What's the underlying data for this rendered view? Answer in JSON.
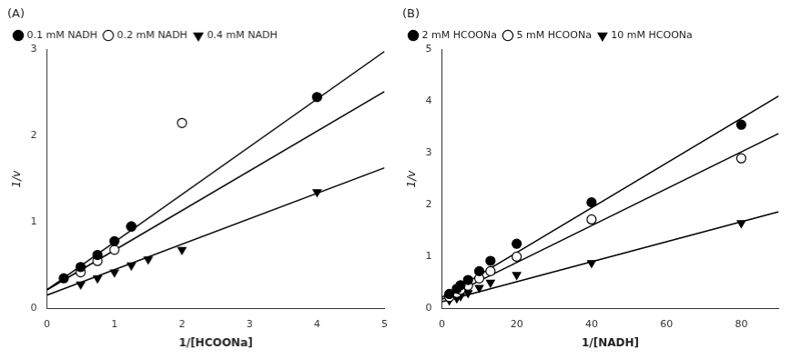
{
  "chart_data": [
    {
      "type": "scatter",
      "title": "(A)",
      "xlabel": "1/[HCOONa]",
      "ylabel": "1/v",
      "xlim": [
        0,
        5
      ],
      "ylim": [
        0,
        3
      ],
      "xticks": [
        0,
        1,
        2,
        3,
        4,
        5
      ],
      "yticks": [
        0,
        1,
        2,
        3
      ],
      "grid": false,
      "legend": "upper left",
      "series": [
        {
          "name": "0.1 mM NADH",
          "color": "#000000",
          "marker": "circle",
          "x": [
            0.25,
            0.5,
            0.75,
            1.0,
            1.25,
            4.0
          ],
          "values": [
            0.35,
            0.48,
            0.62,
            0.78,
            0.95,
            2.45
          ],
          "line": {
            "x": [
              0,
              5
            ],
            "y": [
              0.215,
              2.98
            ]
          }
        },
        {
          "name": "0.2 mM NADH",
          "color": "#000000",
          "marker": "circle-open",
          "x": [
            0.5,
            0.75,
            1.0,
            1.25,
            2.0
          ],
          "values": [
            0.42,
            0.55,
            0.68,
            0.95,
            2.15
          ],
          "line": {
            "x": [
              0,
              5
            ],
            "y": [
              0.215,
              2.515
            ]
          }
        },
        {
          "name": "0.4 mM NADH",
          "color": "#000000",
          "marker": "triangle-down",
          "x": [
            0.5,
            0.75,
            1.0,
            1.25,
            1.5,
            2.0,
            4.0
          ],
          "values": [
            0.28,
            0.35,
            0.42,
            0.5,
            0.57,
            0.68,
            1.35
          ],
          "line": {
            "x": [
              0,
              5
            ],
            "y": [
              0.155,
              1.63
            ]
          }
        }
      ]
    },
    {
      "type": "scatter",
      "title": "(B)",
      "xlabel": "1/[NADH]",
      "ylabel": "1/v",
      "xlim": [
        0,
        90
      ],
      "ylim": [
        0,
        5
      ],
      "xticks": [
        0,
        20,
        40,
        60,
        80
      ],
      "yticks": [
        0,
        1,
        2,
        3,
        4,
        5
      ],
      "grid": false,
      "legend": "upper left",
      "series": [
        {
          "name": "2 mM HCOONa",
          "color": "#000000",
          "marker": "circle",
          "x": [
            2,
            4,
            5,
            7,
            10,
            13,
            20,
            40,
            80
          ],
          "values": [
            0.28,
            0.38,
            0.45,
            0.55,
            0.72,
            0.92,
            1.25,
            2.05,
            3.55
          ],
          "line": {
            "x": [
              0,
              90
            ],
            "y": [
              0.215,
              4.103
            ]
          }
        },
        {
          "name": "5 mM HCOONa",
          "color": "#000000",
          "marker": "circle-open",
          "x": [
            2,
            4,
            5,
            7,
            10,
            13,
            20,
            40,
            80
          ],
          "values": [
            0.22,
            0.3,
            0.36,
            0.44,
            0.58,
            0.72,
            1.0,
            1.72,
            2.9
          ],
          "line": {
            "x": [
              0,
              90
            ],
            "y": [
              0.175,
              3.379
            ]
          }
        },
        {
          "name": "10 mM HCOONa",
          "color": "#000000",
          "marker": "triangle-down",
          "x": [
            2,
            4,
            5,
            7,
            10,
            13,
            20,
            40,
            80
          ],
          "values": [
            0.16,
            0.2,
            0.24,
            0.3,
            0.4,
            0.5,
            0.65,
            0.88,
            1.65
          ],
          "line": {
            "x": [
              0,
              90
            ],
            "y": [
              0.13,
              1.867
            ]
          }
        }
      ]
    }
  ]
}
